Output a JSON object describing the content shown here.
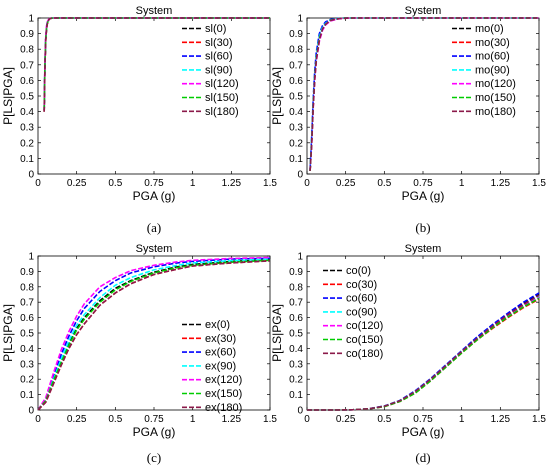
{
  "colors": [
    "#000000",
    "#ff0000",
    "#0000ff",
    "#00ffff",
    "#ff00ff",
    "#00cc00",
    "#8b1a4a"
  ],
  "chart_data": [
    {
      "type": "line",
      "title": "System",
      "xlabel": "PGA (g)",
      "ylabel": "P[LS|PGA]",
      "caption": "(a)",
      "xlim": [
        0,
        1.5
      ],
      "ylim": [
        0,
        1
      ],
      "xticks": [
        "0",
        "0.25",
        "0.5",
        "0.75",
        "1",
        "1.25",
        "1.5"
      ],
      "yticks": [
        "0",
        "0.1",
        "0.2",
        "0.3",
        "0.4",
        "0.5",
        "0.6",
        "0.7",
        "0.8",
        "0.9",
        "1"
      ],
      "grid": false,
      "legend": "top-right",
      "x": [
        0.04,
        0.045,
        0.05,
        0.055,
        0.06,
        0.07,
        0.08,
        0.1,
        0.15,
        0.25,
        0.5,
        1.0,
        1.5
      ],
      "series": [
        {
          "name": "sl(0)",
          "values": [
            0.4,
            0.7,
            0.86,
            0.93,
            0.965,
            0.99,
            0.998,
            1,
            1,
            1,
            1,
            1,
            1
          ]
        },
        {
          "name": "sl(30)",
          "values": [
            0.4,
            0.69,
            0.85,
            0.93,
            0.96,
            0.99,
            0.997,
            1,
            1,
            1,
            1,
            1,
            1
          ]
        },
        {
          "name": "sl(60)",
          "values": [
            0.41,
            0.71,
            0.87,
            0.94,
            0.97,
            0.992,
            0.998,
            1,
            1,
            1,
            1,
            1,
            1
          ]
        },
        {
          "name": "sl(90)",
          "values": [
            0.42,
            0.72,
            0.87,
            0.94,
            0.97,
            0.992,
            0.998,
            1,
            1,
            1,
            1,
            1,
            1
          ]
        },
        {
          "name": "sl(120)",
          "values": [
            0.43,
            0.73,
            0.88,
            0.95,
            0.975,
            0.994,
            0.999,
            1,
            1,
            1,
            1,
            1,
            1
          ]
        },
        {
          "name": "sl(150)",
          "values": [
            0.41,
            0.7,
            0.86,
            0.93,
            0.965,
            0.99,
            0.998,
            1,
            1,
            1,
            1,
            1,
            1
          ]
        },
        {
          "name": "sl(180)",
          "values": [
            0.4,
            0.7,
            0.86,
            0.93,
            0.965,
            0.99,
            0.998,
            1,
            1,
            1,
            1,
            1,
            1
          ]
        }
      ]
    },
    {
      "type": "line",
      "title": "System",
      "xlabel": "PGA (g)",
      "ylabel": "P[LS|PGA]",
      "caption": "(b)",
      "xlim": [
        0,
        1.5
      ],
      "ylim": [
        0,
        1
      ],
      "xticks": [
        "0",
        "0.25",
        "0.5",
        "0.75",
        "1",
        "1.25",
        "1.5"
      ],
      "yticks": [
        "0",
        "0.1",
        "0.2",
        "0.3",
        "0.4",
        "0.5",
        "0.6",
        "0.7",
        "0.8",
        "0.9",
        "1"
      ],
      "grid": false,
      "legend": "top-right",
      "x": [
        0.02,
        0.03,
        0.04,
        0.05,
        0.06,
        0.08,
        0.1,
        0.12,
        0.15,
        0.2,
        0.25,
        0.3,
        0.5,
        1.0,
        1.5
      ],
      "series": [
        {
          "name": "mo(0)",
          "values": [
            0.02,
            0.2,
            0.44,
            0.62,
            0.74,
            0.87,
            0.93,
            0.96,
            0.985,
            0.996,
            1,
            1,
            1,
            1,
            1
          ]
        },
        {
          "name": "mo(30)",
          "values": [
            0.02,
            0.19,
            0.43,
            0.61,
            0.73,
            0.86,
            0.93,
            0.96,
            0.983,
            0.995,
            0.999,
            1,
            1,
            1,
            1
          ]
        },
        {
          "name": "mo(60)",
          "values": [
            0.03,
            0.23,
            0.48,
            0.66,
            0.78,
            0.9,
            0.95,
            0.975,
            0.99,
            0.998,
            1,
            1,
            1,
            1,
            1
          ]
        },
        {
          "name": "mo(90)",
          "values": [
            0.02,
            0.21,
            0.45,
            0.63,
            0.75,
            0.88,
            0.94,
            0.965,
            0.986,
            0.996,
            1,
            1,
            1,
            1,
            1
          ]
        },
        {
          "name": "mo(120)",
          "values": [
            0.02,
            0.18,
            0.42,
            0.6,
            0.72,
            0.85,
            0.92,
            0.955,
            0.98,
            0.994,
            0.999,
            1,
            1,
            1,
            1
          ]
        },
        {
          "name": "mo(150)",
          "values": [
            0.02,
            0.2,
            0.44,
            0.62,
            0.74,
            0.87,
            0.93,
            0.96,
            0.985,
            0.996,
            1,
            1,
            1,
            1,
            1
          ]
        },
        {
          "name": "mo(180)",
          "values": [
            0.02,
            0.19,
            0.43,
            0.61,
            0.73,
            0.86,
            0.93,
            0.96,
            0.984,
            0.995,
            0.999,
            1,
            1,
            1,
            1
          ]
        }
      ]
    },
    {
      "type": "line",
      "title": "System",
      "xlabel": "PGA (g)",
      "ylabel": "P[LS|PGA]",
      "caption": "(c)",
      "xlim": [
        0,
        1.5
      ],
      "ylim": [
        0,
        1
      ],
      "xticks": [
        "0",
        "0.25",
        "0.5",
        "0.75",
        "1",
        "1.25",
        "1.5"
      ],
      "yticks": [
        "0",
        "0.1",
        "0.2",
        "0.3",
        "0.4",
        "0.5",
        "0.6",
        "0.7",
        "0.8",
        "0.9",
        "1"
      ],
      "grid": false,
      "legend": "center-right",
      "x": [
        0,
        0.05,
        0.1,
        0.15,
        0.2,
        0.25,
        0.3,
        0.4,
        0.5,
        0.6,
        0.75,
        0.9,
        1.0,
        1.25,
        1.5
      ],
      "series": [
        {
          "name": "ex(0)",
          "values": [
            0,
            0.06,
            0.19,
            0.32,
            0.43,
            0.53,
            0.6,
            0.71,
            0.79,
            0.84,
            0.895,
            0.93,
            0.945,
            0.965,
            0.975
          ]
        },
        {
          "name": "ex(30)",
          "values": [
            0,
            0.05,
            0.17,
            0.29,
            0.4,
            0.49,
            0.56,
            0.68,
            0.76,
            0.82,
            0.88,
            0.915,
            0.935,
            0.955,
            0.97
          ]
        },
        {
          "name": "ex(60)",
          "values": [
            0,
            0.07,
            0.22,
            0.36,
            0.48,
            0.58,
            0.66,
            0.77,
            0.84,
            0.89,
            0.93,
            0.955,
            0.965,
            0.98,
            0.985
          ]
        },
        {
          "name": "ex(90)",
          "values": [
            0,
            0.06,
            0.2,
            0.33,
            0.45,
            0.55,
            0.62,
            0.73,
            0.81,
            0.86,
            0.91,
            0.94,
            0.955,
            0.97,
            0.98
          ]
        },
        {
          "name": "ex(120)",
          "values": [
            0,
            0.08,
            0.24,
            0.39,
            0.51,
            0.61,
            0.69,
            0.8,
            0.86,
            0.905,
            0.94,
            0.962,
            0.972,
            0.984,
            0.99
          ]
        },
        {
          "name": "ex(150)",
          "values": [
            0,
            0.06,
            0.19,
            0.31,
            0.42,
            0.52,
            0.59,
            0.7,
            0.78,
            0.835,
            0.89,
            0.925,
            0.94,
            0.96,
            0.972
          ]
        },
        {
          "name": "ex(180)",
          "values": [
            0,
            0.05,
            0.17,
            0.29,
            0.4,
            0.49,
            0.56,
            0.68,
            0.76,
            0.82,
            0.88,
            0.915,
            0.935,
            0.955,
            0.968
          ]
        }
      ]
    },
    {
      "type": "line",
      "title": "System",
      "xlabel": "PGA (g)",
      "ylabel": "P[LS|PGA]",
      "caption": "(d)",
      "xlim": [
        0,
        1.5
      ],
      "ylim": [
        0,
        1
      ],
      "xticks": [
        "0",
        "0.25",
        "0.5",
        "0.75",
        "1",
        "1.25",
        "1.5"
      ],
      "yticks": [
        "0",
        "0.1",
        "0.2",
        "0.3",
        "0.4",
        "0.5",
        "0.6",
        "0.7",
        "0.8",
        "0.9",
        "1"
      ],
      "grid": false,
      "legend": "top-left",
      "x": [
        0,
        0.1,
        0.2,
        0.3,
        0.4,
        0.5,
        0.6,
        0.7,
        0.8,
        0.9,
        1.0,
        1.1,
        1.2,
        1.3,
        1.4,
        1.5
      ],
      "series": [
        {
          "name": "co(0)",
          "values": [
            0,
            0,
            0,
            0.002,
            0.008,
            0.025,
            0.06,
            0.12,
            0.2,
            0.29,
            0.38,
            0.47,
            0.55,
            0.62,
            0.69,
            0.75
          ]
        },
        {
          "name": "co(30)",
          "values": [
            0,
            0,
            0,
            0.002,
            0.007,
            0.022,
            0.055,
            0.11,
            0.19,
            0.28,
            0.37,
            0.455,
            0.53,
            0.6,
            0.665,
            0.72
          ]
        },
        {
          "name": "co(60)",
          "values": [
            0,
            0,
            0,
            0.002,
            0.008,
            0.026,
            0.062,
            0.125,
            0.205,
            0.295,
            0.385,
            0.475,
            0.555,
            0.63,
            0.7,
            0.76
          ]
        },
        {
          "name": "co(90)",
          "values": [
            0,
            0,
            0,
            0.002,
            0.008,
            0.025,
            0.06,
            0.12,
            0.2,
            0.29,
            0.38,
            0.465,
            0.545,
            0.615,
            0.68,
            0.74
          ]
        },
        {
          "name": "co(120)",
          "values": [
            0,
            0,
            0,
            0.002,
            0.007,
            0.023,
            0.057,
            0.115,
            0.195,
            0.285,
            0.375,
            0.46,
            0.54,
            0.61,
            0.675,
            0.73
          ]
        },
        {
          "name": "co(150)",
          "values": [
            0,
            0,
            0,
            0.002,
            0.007,
            0.022,
            0.055,
            0.11,
            0.19,
            0.28,
            0.37,
            0.455,
            0.535,
            0.605,
            0.67,
            0.725
          ]
        },
        {
          "name": "co(180)",
          "values": [
            0,
            0,
            0,
            0.002,
            0.008,
            0.025,
            0.06,
            0.12,
            0.2,
            0.29,
            0.38,
            0.465,
            0.545,
            0.62,
            0.685,
            0.745
          ]
        }
      ]
    }
  ]
}
